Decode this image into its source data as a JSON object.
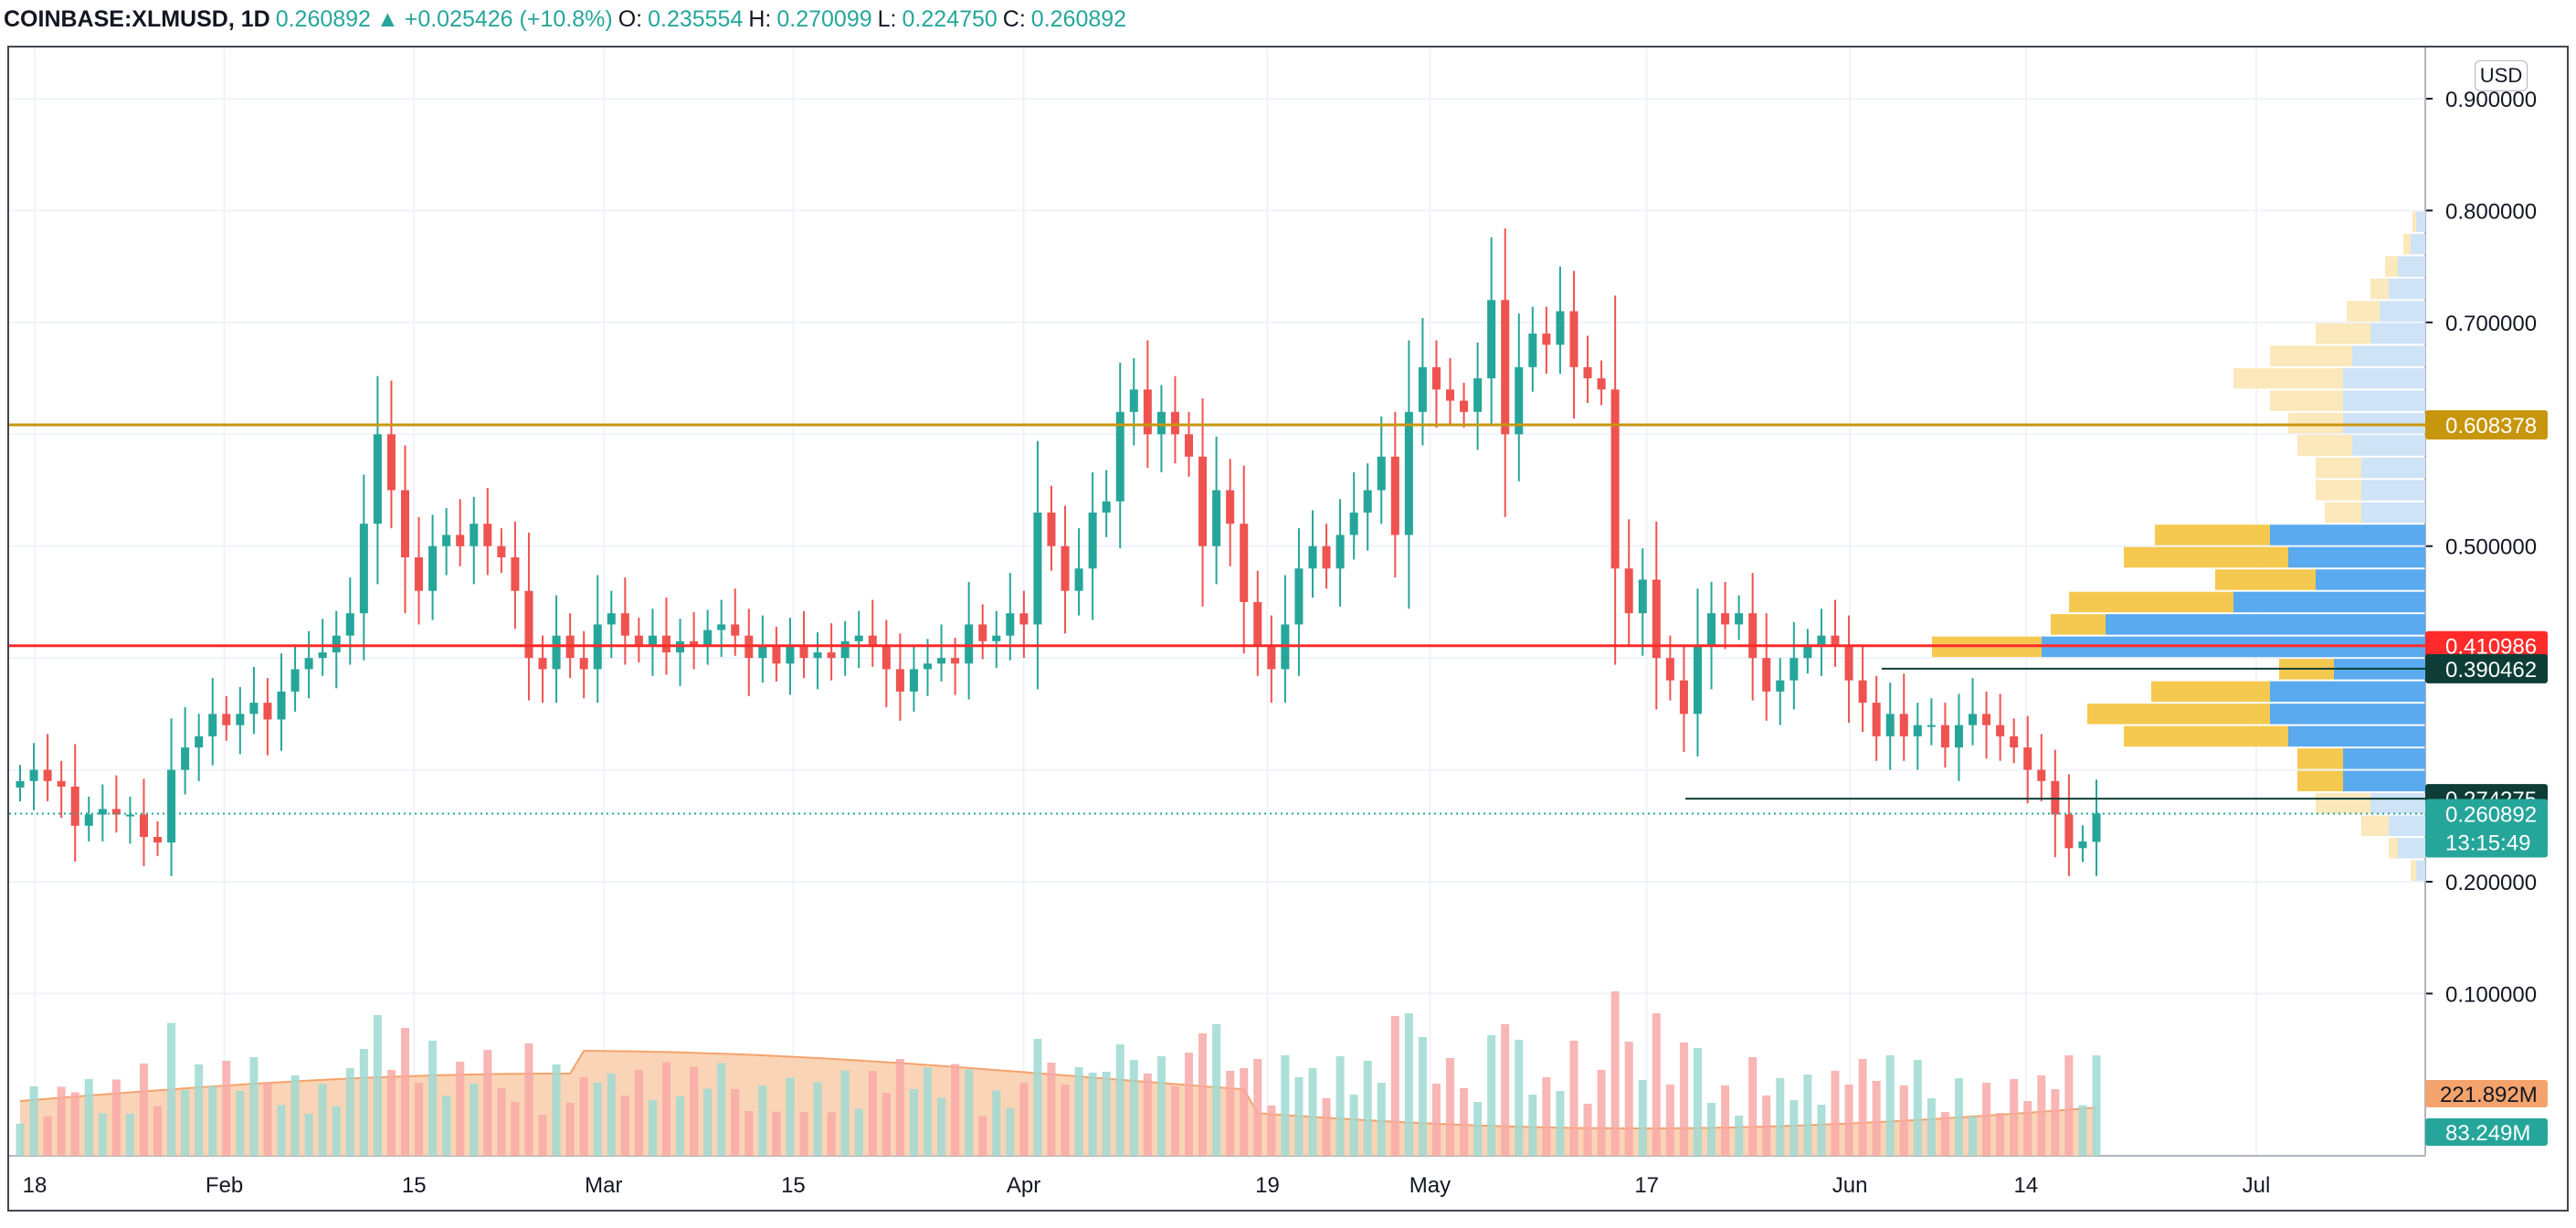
{
  "header": {
    "symbol": "COINBASE:XLMUSD, 1D",
    "last": "0.260892",
    "arrow": "▲",
    "change": "+0.025426 (+10.8%)",
    "o_label": "O:",
    "o_value": "0.235554",
    "h_label": "H:",
    "h_value": "0.270099",
    "l_label": "L:",
    "l_value": "0.224750",
    "c_label": "C:",
    "c_value": "0.260892"
  },
  "currency_label": "USD",
  "chart_data": {
    "type": "candlestick",
    "symbol": "COINBASE:XLMUSD",
    "interval": "1D",
    "ylim": [
      0.2,
      0.95
    ],
    "y_ticks": [
      "0.900000",
      "0.800000",
      "0.700000",
      "0.500000",
      "0.200000",
      "0.100000"
    ],
    "x_ticks": [
      {
        "label": "18",
        "date": "2021-01-18"
      },
      {
        "label": "Feb",
        "date": "2021-02-01"
      },
      {
        "label": "15",
        "date": "2021-02-15"
      },
      {
        "label": "Mar",
        "date": "2021-03-01"
      },
      {
        "label": "15",
        "date": "2021-03-15"
      },
      {
        "label": "Apr",
        "date": "2021-04-01"
      },
      {
        "label": "19",
        "date": "2021-04-19"
      },
      {
        "label": "May",
        "date": "2021-05-01"
      },
      {
        "label": "17",
        "date": "2021-05-17"
      },
      {
        "label": "Jun",
        "date": "2021-06-01"
      },
      {
        "label": "14",
        "date": "2021-06-14"
      },
      {
        "label": "Jul",
        "date": "2021-07-01"
      }
    ],
    "closes": [
      0.29,
      0.3,
      0.29,
      0.285,
      0.25,
      0.26,
      0.265,
      0.26,
      0.26,
      0.24,
      0.235,
      0.3,
      0.32,
      0.33,
      0.35,
      0.34,
      0.35,
      0.36,
      0.345,
      0.37,
      0.39,
      0.4,
      0.405,
      0.42,
      0.44,
      0.52,
      0.6,
      0.55,
      0.49,
      0.46,
      0.5,
      0.51,
      0.5,
      0.52,
      0.5,
      0.49,
      0.46,
      0.4,
      0.39,
      0.42,
      0.4,
      0.39,
      0.43,
      0.44,
      0.42,
      0.41,
      0.42,
      0.405,
      0.415,
      0.41,
      0.425,
      0.43,
      0.42,
      0.4,
      0.41,
      0.395,
      0.41,
      0.4,
      0.405,
      0.4,
      0.415,
      0.42,
      0.41,
      0.39,
      0.37,
      0.39,
      0.395,
      0.4,
      0.395,
      0.43,
      0.415,
      0.42,
      0.44,
      0.43,
      0.53,
      0.5,
      0.46,
      0.48,
      0.53,
      0.54,
      0.62,
      0.64,
      0.6,
      0.62,
      0.6,
      0.58,
      0.5,
      0.55,
      0.52,
      0.45,
      0.41,
      0.39,
      0.43,
      0.48,
      0.5,
      0.48,
      0.51,
      0.53,
      0.55,
      0.58,
      0.51,
      0.62,
      0.66,
      0.64,
      0.63,
      0.62,
      0.65,
      0.72,
      0.6,
      0.66,
      0.69,
      0.68,
      0.71,
      0.66,
      0.65,
      0.64,
      0.48,
      0.44,
      0.47,
      0.4,
      0.38,
      0.35,
      0.41,
      0.44,
      0.43,
      0.44,
      0.4,
      0.37,
      0.38,
      0.4,
      0.41,
      0.42,
      0.41,
      0.38,
      0.36,
      0.33,
      0.35,
      0.33,
      0.34,
      0.34,
      0.32,
      0.34,
      0.35,
      0.34,
      0.33,
      0.32,
      0.3,
      0.29,
      0.26,
      0.23,
      0.236,
      0.261
    ],
    "closes_note_omitted": true,
    "volume_ma_label": "221.892M",
    "last_volume_label": "83.249M",
    "horizontal_levels": [
      {
        "value": 0.608378,
        "label": "0.608378",
        "color": "#c8960c"
      },
      {
        "value": 0.410986,
        "label": "0.410986",
        "color": "#ff2a2a"
      },
      {
        "value": 0.390462,
        "label": "0.390462",
        "color": "#0d3d36"
      },
      {
        "value": 0.274275,
        "label": "0.274275",
        "color": "#0d3d36"
      }
    ],
    "last_price": {
      "value": 0.260892,
      "label": "0.260892",
      "countdown": "13:15:49",
      "color": "#26a69a"
    },
    "colors": {
      "up": "#26a69a",
      "down": "#ef5350",
      "volume_ma": "#f9c9a4",
      "profile_up": "#f5c94f",
      "profile_down": "#5aaaf0"
    }
  }
}
